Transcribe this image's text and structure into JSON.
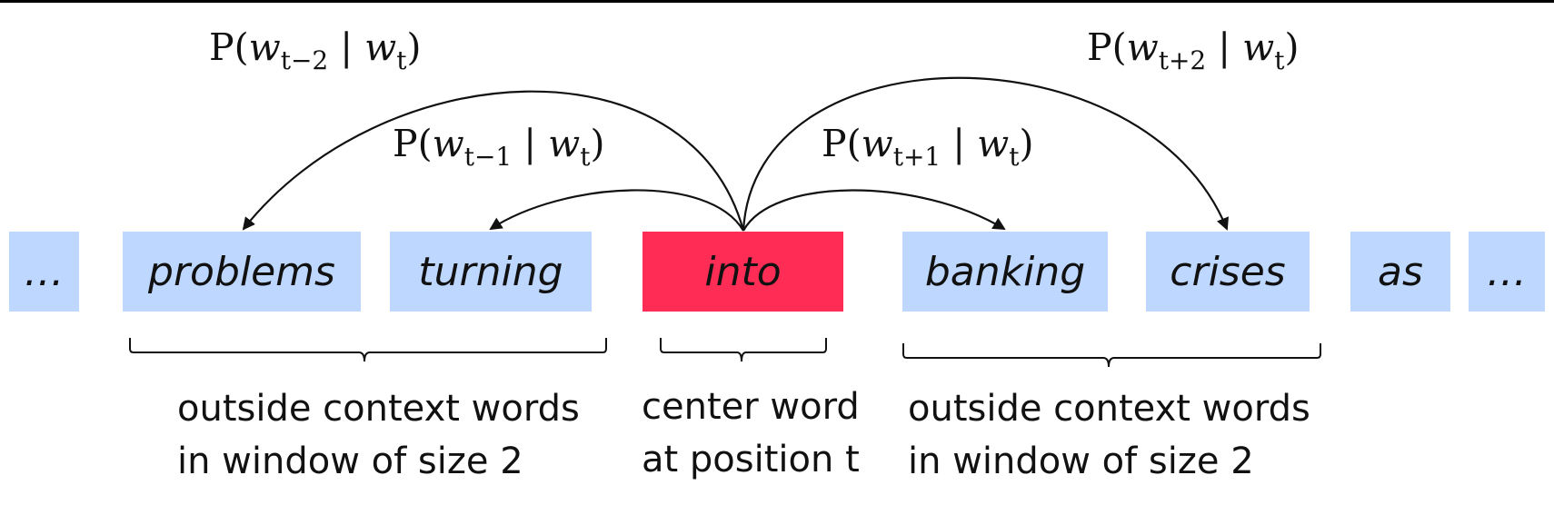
{
  "words": [
    {
      "text": "…"
    },
    {
      "text": "problems"
    },
    {
      "text": "turning"
    },
    {
      "text": "into"
    },
    {
      "text": "banking"
    },
    {
      "text": "crises"
    },
    {
      "text": "as"
    },
    {
      "text": "…"
    }
  ],
  "center_color": "#ff2d55",
  "context_color": "#bdd7ff",
  "probabilities": {
    "minus2": {
      "sub": "t−2",
      "given_sub": "t"
    },
    "minus1": {
      "sub": "t−1",
      "given_sub": "t"
    },
    "plus1": {
      "sub": "t+1",
      "given_sub": "t"
    },
    "plus2": {
      "sub": "t+2",
      "given_sub": "t"
    }
  },
  "captions": {
    "left": {
      "line1": "outside context words",
      "line2": "in window of size 2"
    },
    "center": {
      "line1": "center word",
      "line2": "at position t"
    },
    "right": {
      "line1": "outside context words",
      "line2": "in window of size 2"
    }
  }
}
